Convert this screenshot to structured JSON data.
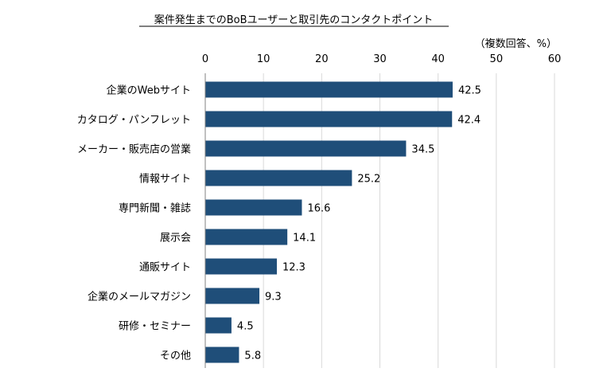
{
  "chart_data": {
    "type": "bar",
    "orientation": "horizontal",
    "title": "案件発生までのBoBユーザーと取引先のコンタクトポイント",
    "unit_label": "（複数回答、%）",
    "xlim": [
      0,
      60
    ],
    "ticks": [
      "0",
      "10",
      "20",
      "30",
      "40",
      "50",
      "60"
    ],
    "tick_values": [
      0,
      10,
      20,
      30,
      40,
      50,
      60
    ],
    "grid": true,
    "categories": [
      "企業のWebサイト",
      "カタログ・パンフレット",
      "メーカー・販売店の営業",
      "情報サイト",
      "専門新聞・雑誌",
      "展示会",
      "通販サイト",
      "企業のメールマガジン",
      "研修・セミナー",
      "その他"
    ],
    "values": [
      42.5,
      42.4,
      34.5,
      25.2,
      16.6,
      14.1,
      12.3,
      9.3,
      4.5,
      5.8
    ],
    "value_labels": [
      "42.5",
      "42.4",
      "34.5",
      "25.2",
      "16.6",
      "14.1",
      "12.3",
      "9.3",
      "4.5",
      "5.8"
    ],
    "bar_color": "#1f4e79",
    "grid_color": "#d9d9d9"
  }
}
